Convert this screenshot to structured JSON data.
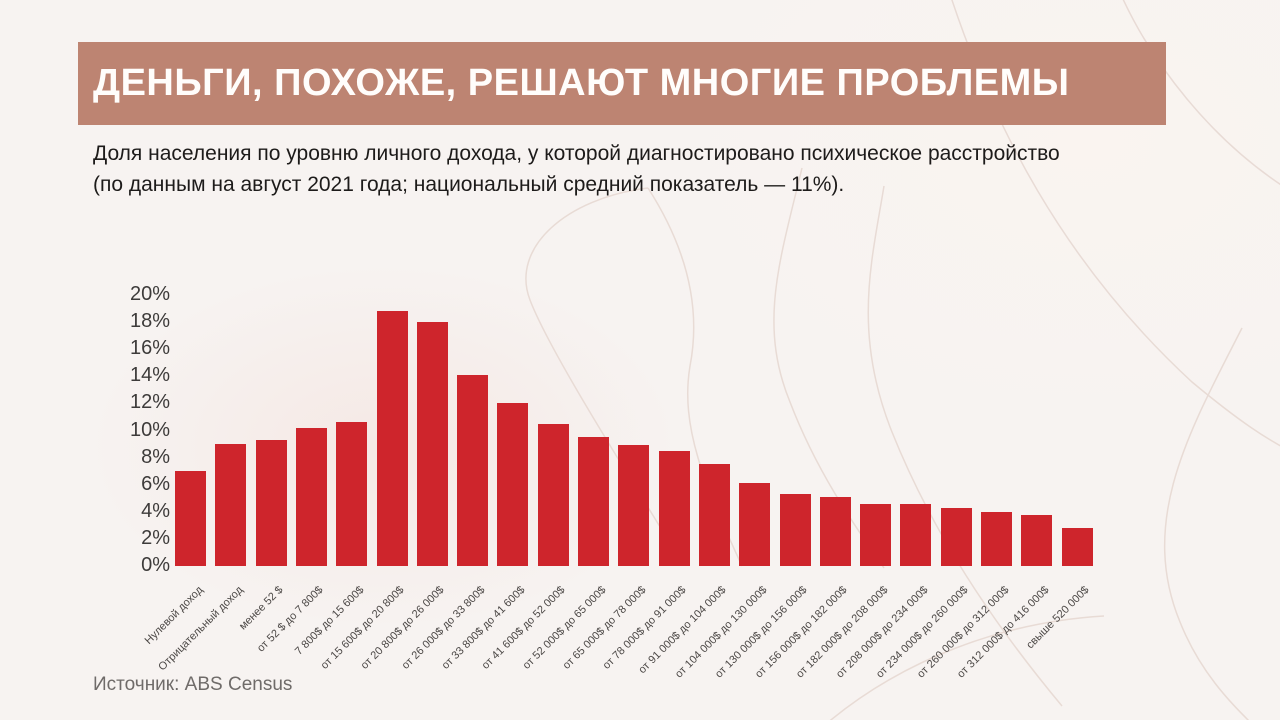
{
  "header": {
    "title": "ДЕНЬГИ, ПОХОЖЕ, РЕШАЮТ МНОГИЕ ПРОБЛЕМЫ",
    "banner_color": "#bd8472",
    "title_color": "#fffdfb"
  },
  "subtitle": {
    "line1": "Доля населения по уровню личного дохода, у которой диагностировано психическое расстройство",
    "line2": "(по данным на август 2021 года; национальный средний показатель — 11%)."
  },
  "source_label": "Источник: ABS Census",
  "colors": {
    "background": "#f7f3f1",
    "bar": "#ce252c",
    "axis_text": "#3d3b3a",
    "xlabel_text": "#4c4846",
    "source_text": "#6f6b69",
    "decor_line": "#e8dbd5"
  },
  "chart_data": {
    "type": "bar",
    "title": "Доля населения по уровню личного дохода, у которой диагностировано психическое расстройство",
    "xlabel": "",
    "ylabel": "",
    "grid": false,
    "legend": null,
    "national_average_note": "национальный средний показатель — 11%",
    "ylim": [
      0,
      20
    ],
    "ytick_values": [
      0,
      2,
      4,
      6,
      8,
      10,
      12,
      14,
      16,
      18,
      20
    ],
    "yticks": [
      "0%",
      "2%",
      "4%",
      "6%",
      "8%",
      "10%",
      "12%",
      "14%",
      "16%",
      "18%",
      "20%"
    ],
    "categories": [
      "Нулевой доход",
      "Отрицательный доход",
      "менее 52 $",
      "от 52 $ до 7 800$",
      "7 800$ до 15 600$",
      "от 15 600$ до 20 800$",
      "от 20 800$ до 26 000$",
      "от 26 000$ до 33 800$",
      "от 33 800$ до 41 600$",
      "от 41 600$ до 52 000$",
      "от 52 000$ до 65 000$",
      "от 65 000$ до 78 000$",
      "от 78 000$ до 91 000$",
      "от 91 000$ до 104 000$",
      "от 104 000$ до 130 000$",
      "от 130 000$ до 156 000$",
      "от 156 000$ до 182 000$",
      "от 182 000$ до 208 000$",
      "от 208 000$ до 234 000$",
      "от 234 000$ до 260 000$",
      "от 260 000$ до 312 000$",
      "от 312 000$ до 416 000$",
      "свыше 520 000$"
    ],
    "values": [
      7.0,
      9.0,
      9.3,
      10.2,
      10.6,
      18.8,
      18.0,
      14.1,
      12.0,
      10.5,
      9.5,
      8.9,
      8.5,
      7.5,
      6.1,
      5.3,
      5.1,
      4.6,
      4.6,
      4.3,
      4.0,
      3.8,
      2.8
    ]
  }
}
